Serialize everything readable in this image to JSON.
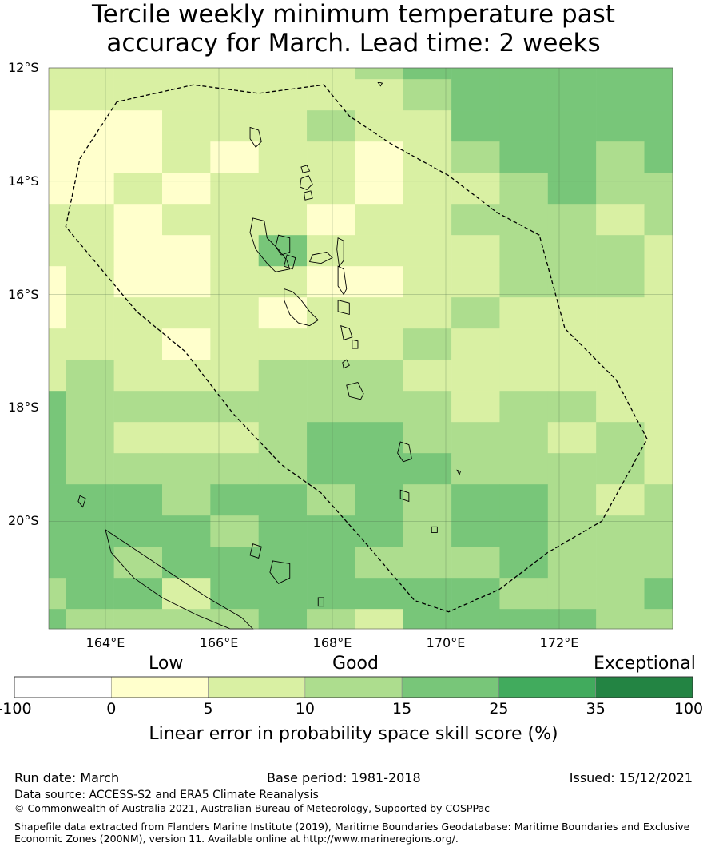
{
  "title": {
    "line1": "Tercile weekly minimum temperature past",
    "line2": "accuracy for March. Lead time: 2 weeks"
  },
  "map": {
    "lon_range": [
      163,
      174
    ],
    "lat_range": [
      -21.9,
      -12
    ],
    "lat_labels": [
      "12°S",
      "14°S",
      "16°S",
      "18°S",
      "20°S"
    ],
    "lat_values": [
      -12,
      -14,
      -16,
      -18,
      -20
    ],
    "lon_labels": [
      "164°E",
      "166°E",
      "168°E",
      "170°E",
      "172°E"
    ],
    "lon_values": [
      164,
      166,
      168,
      170,
      172
    ],
    "grid_lon_edges": [
      163,
      163.3,
      164.15,
      165,
      165.85,
      166.7,
      167.55,
      168.4,
      169.25,
      170.1,
      170.95,
      171.8,
      172.65,
      173.5,
      174
    ],
    "grid_lat_edges": [
      -12,
      -12.2,
      -12.75,
      -13.3,
      -13.85,
      -14.4,
      -14.95,
      -15.5,
      -16.05,
      -16.6,
      -17.15,
      -17.7,
      -18.25,
      -18.8,
      -19.35,
      -19.9,
      -20.45,
      -21.0,
      -21.55,
      -21.9
    ],
    "cells": [
      [
        1,
        1,
        1,
        1,
        1,
        1,
        1,
        2,
        3,
        3,
        3,
        3,
        3,
        3
      ],
      [
        1,
        1,
        1,
        1,
        1,
        1,
        1,
        1,
        2,
        3,
        3,
        3,
        3,
        3
      ],
      [
        0,
        0,
        0,
        1,
        1,
        1,
        2,
        1,
        1,
        3,
        3,
        3,
        3,
        3
      ],
      [
        0,
        0,
        0,
        1,
        0,
        1,
        1,
        0,
        1,
        2,
        3,
        3,
        2,
        3
      ],
      [
        0,
        0,
        1,
        0,
        1,
        1,
        1,
        0,
        1,
        1,
        2,
        3,
        2,
        2
      ],
      [
        1,
        1,
        0,
        1,
        1,
        1,
        0,
        1,
        1,
        2,
        2,
        2,
        1,
        2
      ],
      [
        1,
        1,
        0,
        0,
        1,
        3,
        1,
        1,
        1,
        1,
        2,
        2,
        2,
        1
      ],
      [
        0,
        1,
        0,
        0,
        1,
        1,
        0,
        0,
        1,
        1,
        2,
        2,
        2,
        1
      ],
      [
        0,
        1,
        1,
        1,
        1,
        0,
        1,
        1,
        1,
        2,
        1,
        1,
        1,
        1
      ],
      [
        1,
        1,
        1,
        0,
        1,
        1,
        1,
        1,
        2,
        1,
        1,
        1,
        1,
        1
      ],
      [
        1,
        2,
        1,
        1,
        1,
        2,
        2,
        2,
        1,
        1,
        1,
        1,
        1,
        1
      ],
      [
        3,
        2,
        2,
        2,
        2,
        2,
        2,
        2,
        2,
        1,
        2,
        2,
        1,
        1
      ],
      [
        3,
        2,
        1,
        1,
        1,
        2,
        3,
        3,
        2,
        2,
        2,
        1,
        2,
        1
      ],
      [
        3,
        2,
        2,
        2,
        2,
        2,
        3,
        3,
        3,
        2,
        2,
        2,
        2,
        1
      ],
      [
        3,
        3,
        3,
        2,
        3,
        3,
        2,
        3,
        2,
        3,
        3,
        2,
        1,
        2
      ],
      [
        3,
        3,
        3,
        3,
        2,
        3,
        3,
        3,
        2,
        3,
        3,
        2,
        2,
        2
      ],
      [
        3,
        3,
        2,
        3,
        3,
        3,
        3,
        2,
        2,
        2,
        3,
        2,
        2,
        2
      ],
      [
        2,
        3,
        3,
        1,
        3,
        3,
        3,
        3,
        3,
        3,
        2,
        2,
        2,
        3
      ],
      [
        3,
        2,
        2,
        2,
        2,
        3,
        2,
        1,
        3,
        3,
        3,
        3,
        2,
        2
      ]
    ],
    "cell_colors": [
      "#ffffcc",
      "#d9f0a3",
      "#addd8e",
      "#78c679"
    ],
    "eez_boundary": [
      [
        164.2,
        -12.6
      ],
      [
        163.55,
        -13.6
      ],
      [
        163.3,
        -14.8
      ],
      [
        164.55,
        -16.3
      ],
      [
        165.4,
        -17.0
      ],
      [
        166.25,
        -18.1
      ],
      [
        167.1,
        -19.0
      ],
      [
        167.8,
        -19.5
      ],
      [
        168.6,
        -20.4
      ],
      [
        169.45,
        -21.4
      ],
      [
        170.05,
        -21.6
      ],
      [
        170.95,
        -21.2
      ],
      [
        171.8,
        -20.55
      ],
      [
        172.75,
        -20.0
      ],
      [
        173.55,
        -18.55
      ],
      [
        173.0,
        -17.5
      ],
      [
        172.1,
        -16.6
      ],
      [
        171.65,
        -14.95
      ],
      [
        170.9,
        -14.55
      ],
      [
        170.05,
        -13.9
      ],
      [
        169.05,
        -13.35
      ],
      [
        168.3,
        -12.85
      ],
      [
        167.85,
        -12.3
      ],
      [
        166.7,
        -12.45
      ],
      [
        165.55,
        -12.3
      ],
      [
        164.2,
        -12.6
      ]
    ],
    "islands": [
      [
        [
          166.55,
          -13.05
        ],
        [
          166.7,
          -13.1
        ],
        [
          166.75,
          -13.3
        ],
        [
          166.65,
          -13.4
        ],
        [
          166.55,
          -13.25
        ]
      ],
      [
        [
          167.45,
          -13.75
        ],
        [
          167.55,
          -13.72
        ],
        [
          167.6,
          -13.82
        ],
        [
          167.48,
          -13.85
        ]
      ],
      [
        [
          167.45,
          -13.95
        ],
        [
          167.58,
          -13.9
        ],
        [
          167.65,
          -14.05
        ],
        [
          167.55,
          -14.15
        ],
        [
          167.43,
          -14.1
        ]
      ],
      [
        [
          167.5,
          -14.2
        ],
        [
          167.62,
          -14.17
        ],
        [
          167.65,
          -14.3
        ],
        [
          167.52,
          -14.33
        ]
      ],
      [
        [
          166.6,
          -14.65
        ],
        [
          166.8,
          -14.7
        ],
        [
          166.85,
          -15.0
        ],
        [
          167.05,
          -15.2
        ],
        [
          167.2,
          -15.4
        ],
        [
          167.25,
          -15.55
        ],
        [
          167.0,
          -15.6
        ],
        [
          166.85,
          -15.45
        ],
        [
          166.65,
          -15.2
        ],
        [
          166.55,
          -14.9
        ]
      ],
      [
        [
          167.05,
          -14.95
        ],
        [
          167.25,
          -15.0
        ],
        [
          167.25,
          -15.25
        ],
        [
          167.1,
          -15.3
        ],
        [
          167.0,
          -15.15
        ]
      ],
      [
        [
          167.2,
          -15.3
        ],
        [
          167.35,
          -15.35
        ],
        [
          167.3,
          -15.55
        ],
        [
          167.15,
          -15.5
        ]
      ],
      [
        [
          167.65,
          -15.3
        ],
        [
          167.9,
          -15.25
        ],
        [
          168.0,
          -15.35
        ],
        [
          167.8,
          -15.45
        ],
        [
          167.6,
          -15.42
        ]
      ],
      [
        [
          168.1,
          -15.0
        ],
        [
          168.2,
          -15.05
        ],
        [
          168.2,
          -15.4
        ],
        [
          168.12,
          -15.5
        ],
        [
          168.08,
          -15.2
        ]
      ],
      [
        [
          168.1,
          -15.5
        ],
        [
          168.2,
          -15.55
        ],
        [
          168.25,
          -15.9
        ],
        [
          168.2,
          -16.0
        ],
        [
          168.1,
          -15.85
        ]
      ],
      [
        [
          167.15,
          -15.9
        ],
        [
          167.3,
          -15.95
        ],
        [
          167.45,
          -16.1
        ],
        [
          167.6,
          -16.3
        ],
        [
          167.75,
          -16.45
        ],
        [
          167.6,
          -16.55
        ],
        [
          167.4,
          -16.5
        ],
        [
          167.25,
          -16.35
        ],
        [
          167.15,
          -16.1
        ]
      ],
      [
        [
          168.1,
          -16.1
        ],
        [
          168.3,
          -16.15
        ],
        [
          168.3,
          -16.35
        ],
        [
          168.1,
          -16.3
        ]
      ],
      [
        [
          168.15,
          -16.55
        ],
        [
          168.3,
          -16.6
        ],
        [
          168.35,
          -16.75
        ],
        [
          168.2,
          -16.8
        ]
      ],
      [
        [
          168.35,
          -16.8
        ],
        [
          168.45,
          -16.82
        ],
        [
          168.45,
          -16.95
        ],
        [
          168.35,
          -16.95
        ]
      ],
      [
        [
          168.18,
          -17.2
        ],
        [
          168.25,
          -17.15
        ],
        [
          168.3,
          -17.25
        ],
        [
          168.2,
          -17.3
        ]
      ],
      [
        [
          168.25,
          -17.6
        ],
        [
          168.45,
          -17.55
        ],
        [
          168.55,
          -17.75
        ],
        [
          168.5,
          -17.85
        ],
        [
          168.3,
          -17.8
        ]
      ],
      [
        [
          169.2,
          -18.6
        ],
        [
          169.35,
          -18.65
        ],
        [
          169.4,
          -18.9
        ],
        [
          169.25,
          -18.95
        ],
        [
          169.15,
          -18.8
        ]
      ],
      [
        [
          169.2,
          -19.45
        ],
        [
          169.35,
          -19.5
        ],
        [
          169.35,
          -19.65
        ],
        [
          169.2,
          -19.6
        ]
      ],
      [
        [
          169.75,
          -20.1
        ],
        [
          169.85,
          -20.1
        ],
        [
          169.85,
          -20.2
        ],
        [
          169.75,
          -20.2
        ]
      ],
      [
        [
          164.0,
          -20.15
        ],
        [
          164.6,
          -20.55
        ],
        [
          165.2,
          -20.95
        ],
        [
          165.8,
          -21.35
        ],
        [
          166.4,
          -21.7
        ],
        [
          166.6,
          -21.9
        ],
        [
          166.2,
          -21.9
        ],
        [
          165.6,
          -21.65
        ],
        [
          165.0,
          -21.35
        ],
        [
          164.5,
          -21.0
        ],
        [
          164.1,
          -20.55
        ]
      ],
      [
        [
          166.6,
          -20.4
        ],
        [
          166.75,
          -20.45
        ],
        [
          166.7,
          -20.65
        ],
        [
          166.55,
          -20.6
        ]
      ],
      [
        [
          166.95,
          -20.7
        ],
        [
          167.25,
          -20.75
        ],
        [
          167.25,
          -21.0
        ],
        [
          167.05,
          -21.1
        ],
        [
          166.9,
          -20.9
        ]
      ],
      [
        [
          167.75,
          -21.35
        ],
        [
          167.85,
          -21.35
        ],
        [
          167.85,
          -21.5
        ],
        [
          167.75,
          -21.5
        ]
      ],
      [
        [
          163.55,
          -19.55
        ],
        [
          163.65,
          -19.6
        ],
        [
          163.6,
          -19.75
        ],
        [
          163.52,
          -19.65
        ]
      ],
      [
        [
          168.8,
          -12.25
        ],
        [
          168.88,
          -12.27
        ],
        [
          168.85,
          -12.32
        ]
      ],
      [
        [
          170.2,
          -19.1
        ],
        [
          170.26,
          -19.12
        ],
        [
          170.24,
          -19.18
        ]
      ]
    ]
  },
  "categories": [
    "Low",
    "Good",
    "Exceptional"
  ],
  "colorbar": {
    "ticks": [
      "-100",
      "0",
      "5",
      "10",
      "15",
      "25",
      "35",
      "100"
    ],
    "colors": [
      "#ffffff",
      "#ffffcc",
      "#d9f0a3",
      "#addd8e",
      "#78c679",
      "#41ab5d",
      "#238443"
    ],
    "title": "Linear error in probability space skill score (%)"
  },
  "footer": {
    "run_date": "Run date: March",
    "base_period": "Base period: 1981-2018",
    "issued": "Issued: 15/12/2021",
    "data_source": "Data source: ACCESS-S2 and ERA5 Climate Reanalysis",
    "copyright": "© Commonwealth of Australia 2021, Australian Bureau of Meteorology, Supported by COSPPac",
    "shapefile_line1": "Shapefile data extracted from Flanders Marine Institute (2019), Maritime Boundaries Geodatabase: Maritime Boundaries and Exclusive",
    "shapefile_line2": "Economic Zones (200NM), version 11. Available online at http://www.marineregions.org/."
  }
}
